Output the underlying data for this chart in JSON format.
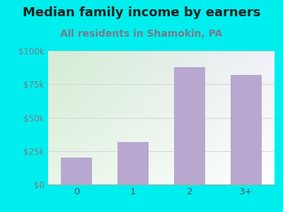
{
  "title": "Median family income by earners",
  "subtitle": "All residents in Shamokin, PA",
  "categories": [
    "0",
    "1",
    "2",
    "3+"
  ],
  "values": [
    20000,
    32000,
    88000,
    82000
  ],
  "bar_color": "#b8a8d0",
  "title_fontsize": 13,
  "subtitle_fontsize": 10,
  "title_color": "#222222",
  "subtitle_color": "#7a7a8a",
  "ytick_color": "#7a7a8a",
  "xtick_color": "#555566",
  "background_color": "#00EEEE",
  "plot_bg_topleft": "#d4ecd4",
  "plot_bg_topright": "#f0f0f8",
  "plot_bg_bottomleft": "#e8f5e8",
  "plot_bg_bottomright": "#ffffff",
  "ylim": [
    0,
    100000
  ],
  "yticks": [
    0,
    25000,
    50000,
    75000,
    100000
  ],
  "ytick_labels": [
    "$0",
    "$25k",
    "$50k",
    "$75k",
    "$100k"
  ],
  "grid_color": "#d8d8d8",
  "grid_linewidth": 0.8
}
